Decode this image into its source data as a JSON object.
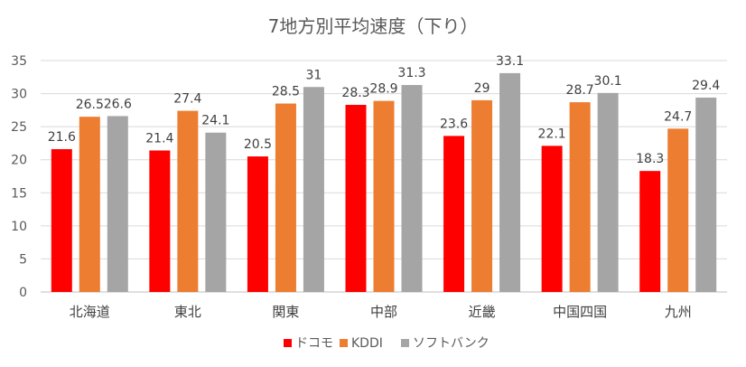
{
  "chart_data": {
    "type": "bar",
    "title": "7地方別平均速度（下り）",
    "xlabel": "",
    "ylabel": "",
    "ylim": [
      0,
      35
    ],
    "yticks": [
      0,
      5,
      10,
      15,
      20,
      25,
      30,
      35
    ],
    "grid": true,
    "legend_position": "bottom",
    "categories": [
      "北海道",
      "東北",
      "関東",
      "中部",
      "近畿",
      "中国四国",
      "九州"
    ],
    "series": [
      {
        "name": "ドコモ",
        "color": "#ff0000",
        "values": [
          21.6,
          21.4,
          20.5,
          28.3,
          23.6,
          22.1,
          18.3
        ]
      },
      {
        "name": "KDDI",
        "color": "#ed7d31",
        "values": [
          26.5,
          27.4,
          28.5,
          28.9,
          29,
          28.7,
          24.7
        ]
      },
      {
        "name": "ソフトバンク",
        "color": "#a5a5a5",
        "values": [
          26.6,
          24.1,
          31,
          31.3,
          33.1,
          30.1,
          29.4
        ]
      }
    ]
  }
}
